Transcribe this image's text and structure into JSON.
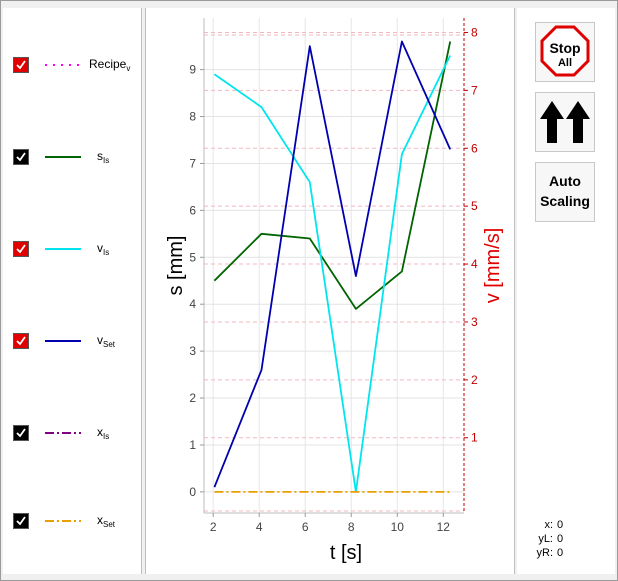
{
  "legend": {
    "items": [
      {
        "label": "Recipe",
        "sub": "v",
        "checked": true,
        "checkbox_color": "#e00000",
        "line_color": "#ff00ff",
        "dash": "2,6"
      },
      {
        "label": "s",
        "sub": "Is",
        "checked": true,
        "checkbox_color": "#000000",
        "line_color": "#006400",
        "dash": ""
      },
      {
        "label": "v",
        "sub": "Is",
        "checked": true,
        "checkbox_color": "#e00000",
        "line_color": "#00e5ee",
        "dash": ""
      },
      {
        "label": "v",
        "sub": "Set",
        "checked": true,
        "checkbox_color": "#e00000",
        "line_color": "#0000b0",
        "dash": ""
      },
      {
        "label": "x",
        "sub": "Is",
        "checked": true,
        "checkbox_color": "#000000",
        "line_color": "#800080",
        "dash": "9,3,2,3"
      },
      {
        "label": "x",
        "sub": "Set",
        "checked": true,
        "checkbox_color": "#000000",
        "line_color": "#e8a000",
        "dash": "9,3,2,3"
      }
    ]
  },
  "buttons": {
    "stop_line1": "Stop",
    "stop_line2": "All",
    "auto_line1": "Auto",
    "auto_line2": "Scaling"
  },
  "readout": {
    "x_label": "x:",
    "x_value": "0",
    "yl_label": "yL:",
    "yl_value": "0",
    "yr_label": "yR:",
    "yr_value": "0"
  },
  "chart_data": {
    "type": "line",
    "xlabel": "t [s]",
    "ylabel_left": "s [mm]",
    "ylabel_right": "v [mm/s]",
    "x_ticks": [
      2,
      4,
      6,
      8,
      10,
      12
    ],
    "y_left_ticks": [
      0,
      1,
      2,
      3,
      4,
      5,
      6,
      7,
      8,
      9
    ],
    "y_right_ticks": [
      1,
      2,
      3,
      4,
      5,
      6,
      7,
      8
    ],
    "xlim": [
      1.6,
      12.9
    ],
    "ylim_left": [
      -0.45,
      10.1
    ],
    "ylim_right": [
      -0.3,
      8.25
    ],
    "grid": true,
    "series": [
      {
        "name": "sIs",
        "axis": "left",
        "color": "#006400",
        "x": [
          2.05,
          4.1,
          6.2,
          8.2,
          10.2,
          12.3
        ],
        "y": [
          4.5,
          5.5,
          5.4,
          3.9,
          4.7,
          9.6
        ]
      },
      {
        "name": "vIs",
        "axis": "left",
        "color": "#00e5ee",
        "x": [
          2.05,
          4.1,
          6.2,
          8.2,
          10.2,
          12.3
        ],
        "y": [
          8.9,
          8.2,
          6.6,
          0.0,
          7.2,
          9.3
        ]
      },
      {
        "name": "vSet",
        "axis": "left",
        "color": "#0000b0",
        "x": [
          2.05,
          4.1,
          6.2,
          8.2,
          10.2,
          12.3
        ],
        "y": [
          0.1,
          2.6,
          9.5,
          4.6,
          9.6,
          7.3
        ]
      },
      {
        "name": "xSet",
        "axis": "left",
        "color": "#e8a000",
        "x": [
          2.05,
          12.3
        ],
        "y": [
          0.0,
          0.0
        ],
        "dash": "9,3,2,3"
      }
    ]
  }
}
